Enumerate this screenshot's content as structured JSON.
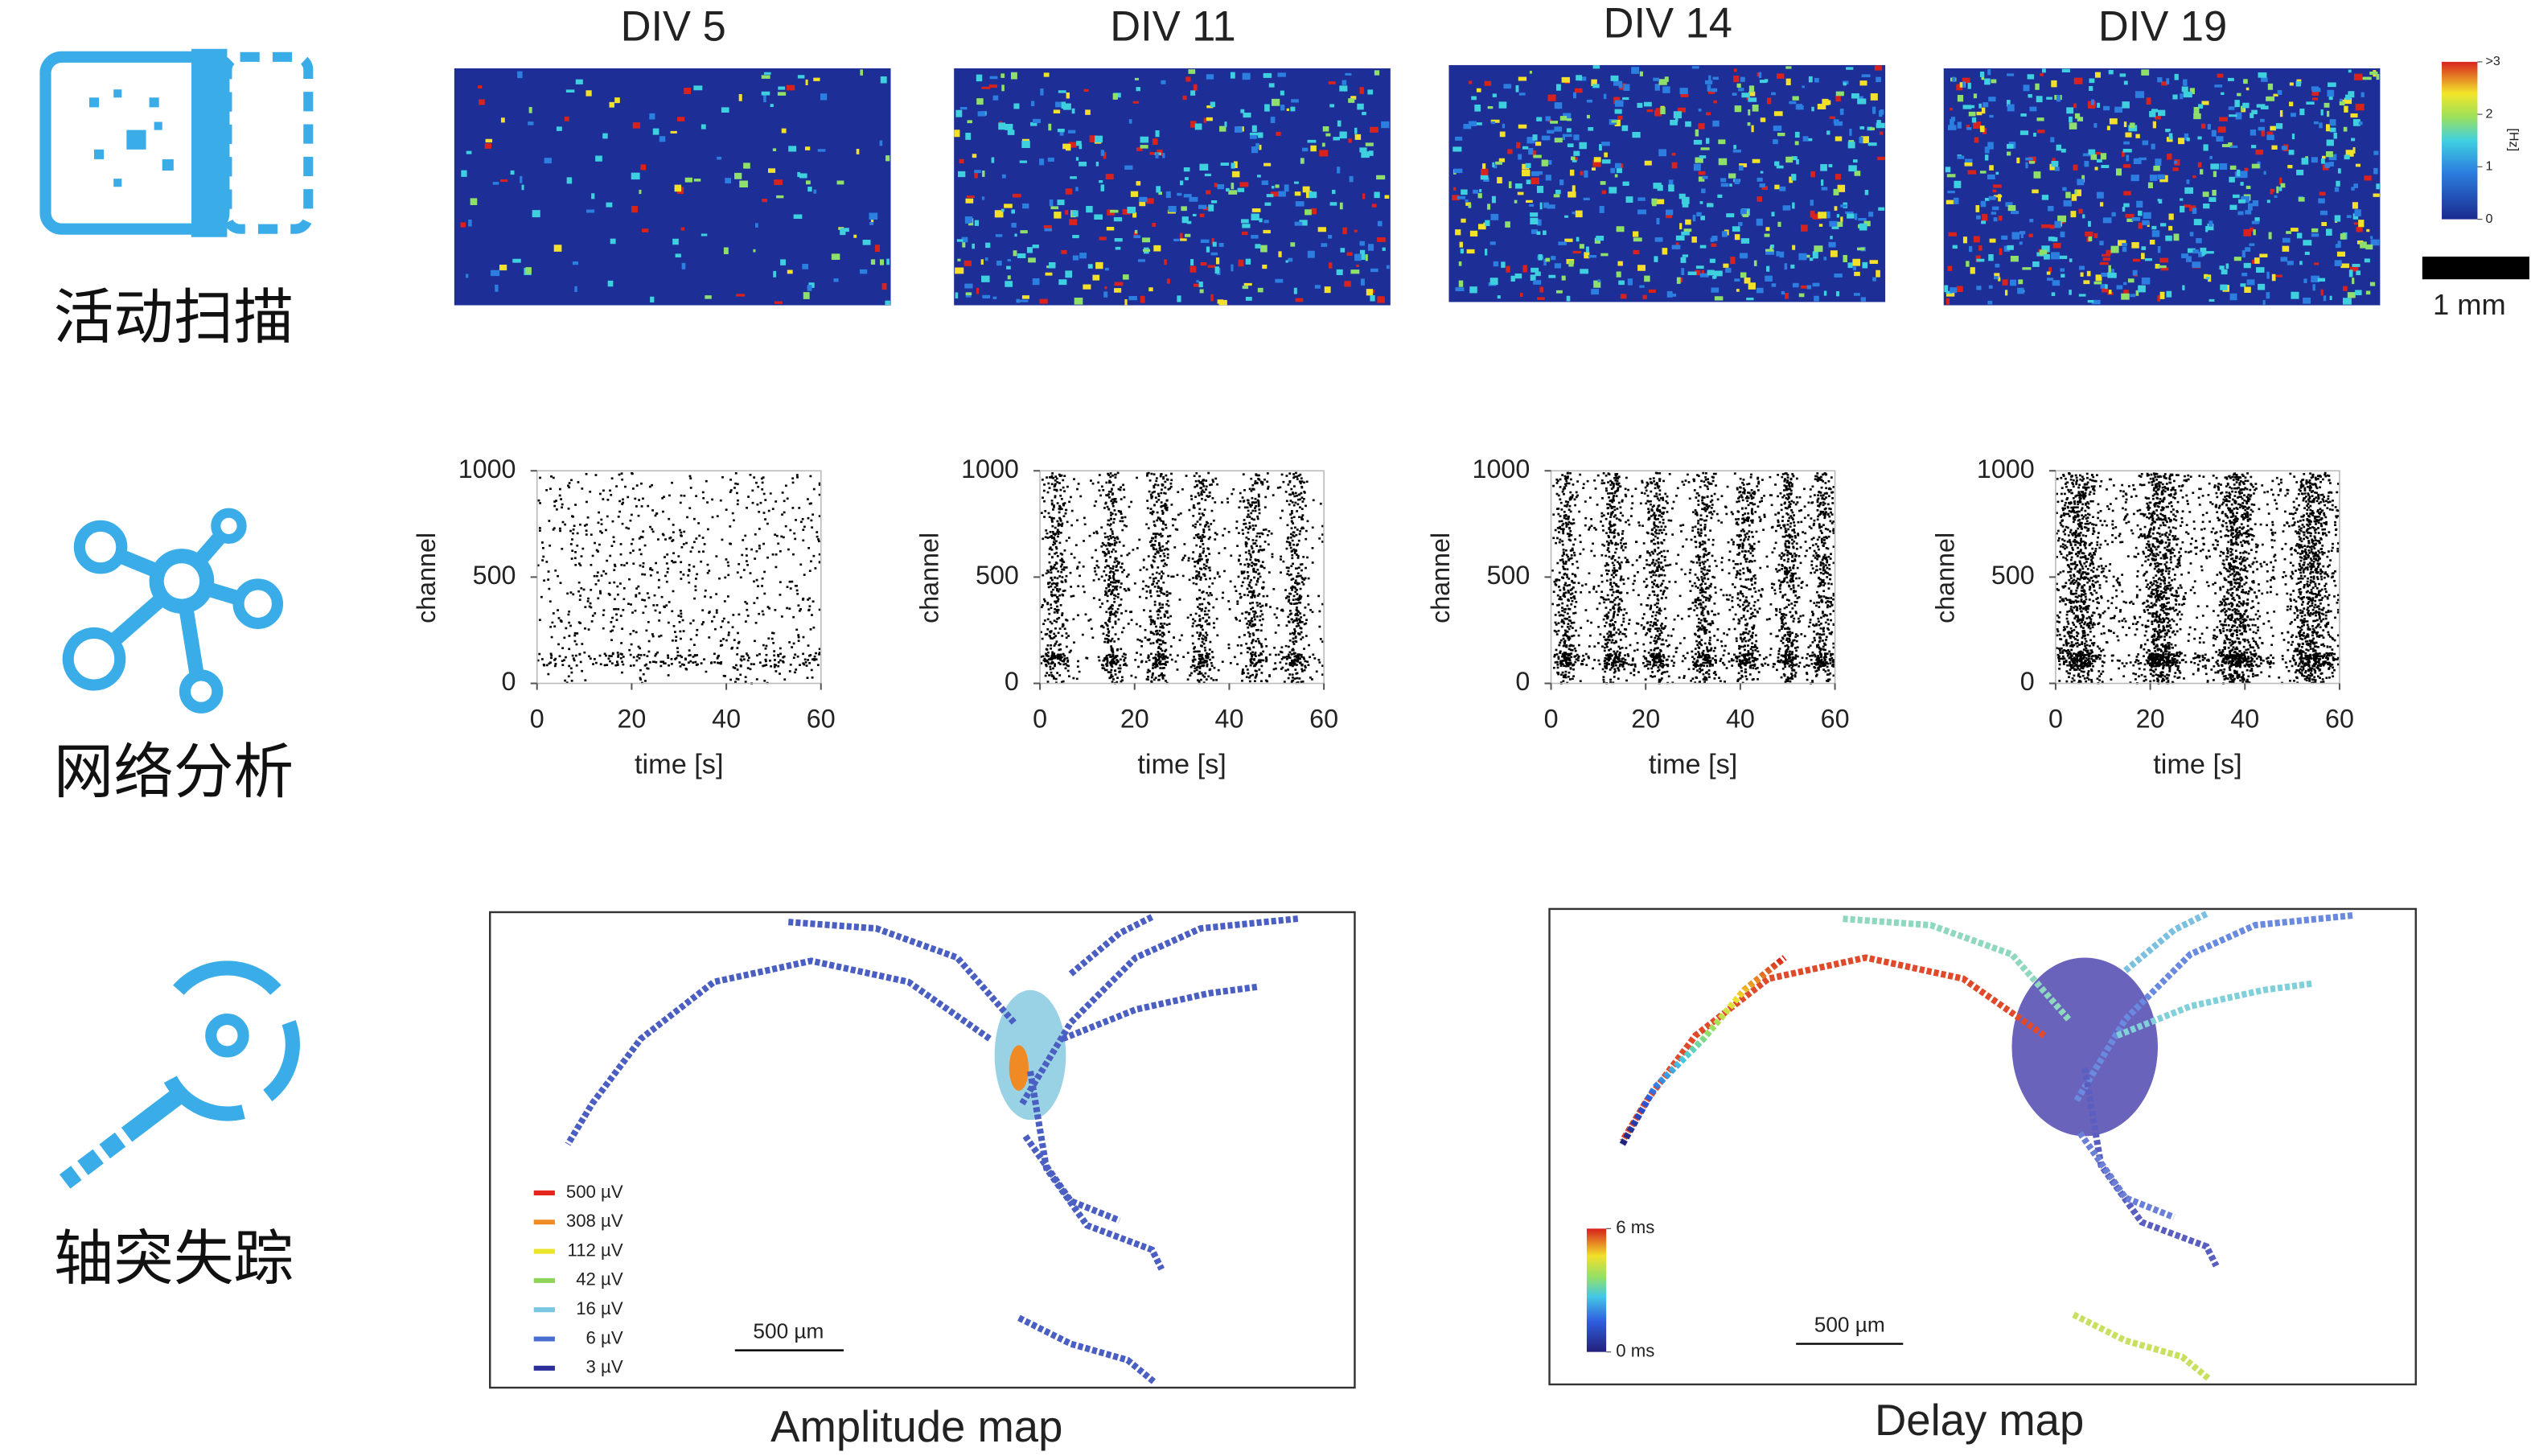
{
  "row_labels": [
    "活动扫描",
    "网络分析",
    "轴突失踪"
  ],
  "activity_maps": {
    "titles": [
      "DIV 5",
      "DIV 11",
      "DIV 14",
      "DIV 19"
    ],
    "colorbar": {
      "unit": "[Hz]",
      "lim": [
        0,
        3
      ],
      "ticks": [
        {
          "value": 3,
          "label": ">3"
        },
        2,
        1,
        0
      ]
    },
    "scale_bar": "1 mm"
  },
  "chart_data": [
    {
      "type": "scatter",
      "x_label": "time [s]",
      "y_label": "channel",
      "xlim": [
        0,
        60
      ],
      "ylim": [
        0,
        1000
      ],
      "xticks": [
        0,
        20,
        40,
        60
      ],
      "yticks": [
        0,
        500,
        1000
      ]
    },
    {
      "type": "scatter",
      "x_label": "time [s]",
      "y_label": "channel",
      "xlim": [
        0,
        60
      ],
      "ylim": [
        0,
        1000
      ],
      "xticks": [
        0,
        20,
        40,
        60
      ],
      "yticks": [
        0,
        500,
        1000
      ]
    },
    {
      "type": "scatter",
      "x_label": "time [s]",
      "y_label": "channel",
      "xlim": [
        0,
        60
      ],
      "ylim": [
        0,
        1000
      ],
      "xticks": [
        0,
        20,
        40,
        60
      ],
      "yticks": [
        0,
        500,
        1000
      ]
    },
    {
      "type": "scatter",
      "x_label": "time [s]",
      "y_label": "channel",
      "xlim": [
        0,
        60
      ],
      "ylim": [
        0,
        1000
      ],
      "xticks": [
        0,
        20,
        40,
        60
      ],
      "yticks": [
        0,
        500,
        1000
      ]
    }
  ],
  "axon_maps": {
    "amplitude": {
      "title": "Amplitude map",
      "scale_bar": "500 µm",
      "legend": [
        {
          "label": "500 µV",
          "color": "#e4261f"
        },
        {
          "label": "308 µV",
          "color": "#f08a24"
        },
        {
          "label": "112 µV",
          "color": "#e9e52a"
        },
        {
          "label": "42 µV",
          "color": "#8fd35a"
        },
        {
          "label": "16 µV",
          "color": "#78c6e0"
        },
        {
          "label": "6 µV",
          "color": "#4a6fd0"
        },
        {
          "label": "3 µV",
          "color": "#2a2f9c"
        }
      ]
    },
    "delay": {
      "title": "Delay map",
      "scale_bar": "500 µm",
      "colorbar": {
        "lim": [
          0,
          6
        ],
        "ticks": [
          {
            "value": 6,
            "label": "6 ms"
          },
          {
            "value": 0,
            "label": "0 ms"
          }
        ]
      }
    }
  }
}
